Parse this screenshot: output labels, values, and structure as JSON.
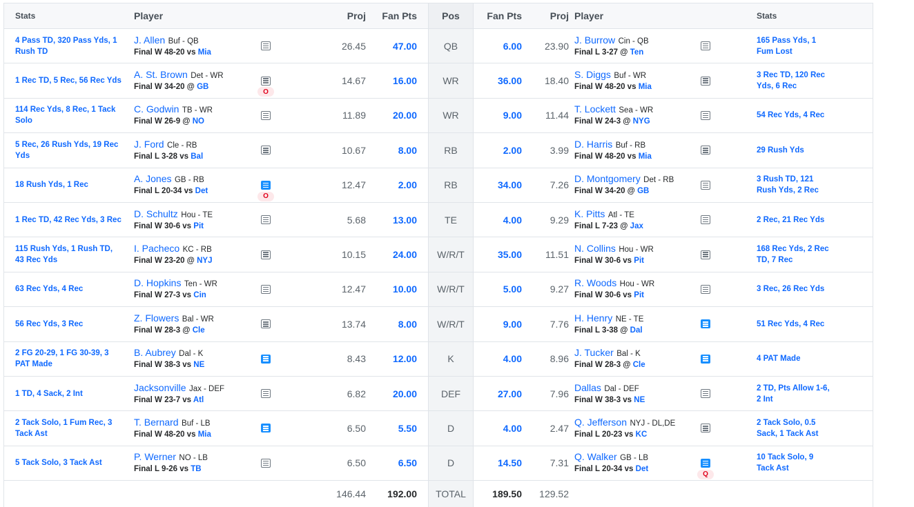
{
  "header": {
    "stats": "Stats",
    "player": "Player",
    "proj": "Proj",
    "fan_pts": "Fan Pts",
    "pos": "Pos"
  },
  "rows": [
    {
      "pos": "QB",
      "left": {
        "stats": "4 Pass TD, 320 Pass Yds, 1 Rush TD",
        "name": "J. Allen",
        "team_pos": "Buf - QB",
        "game": "Final W 48-20 vs",
        "opp": "Mia",
        "proj": "26.45",
        "fan": "47.00",
        "note": "notes-icon",
        "badge": ""
      },
      "right": {
        "stats": "165 Pass Yds, 1 Fum Lost",
        "name": "J. Burrow",
        "team_pos": "Cin - QB",
        "game": "Final L 3-27 @",
        "opp": "Ten",
        "proj": "23.90",
        "fan": "6.00",
        "note": "notes-icon",
        "badge": ""
      }
    },
    {
      "pos": "WR",
      "left": {
        "stats": "1 Rec TD, 5 Rec, 56 Rec Yds",
        "name": "A. St. Brown",
        "team_pos": "Det - WR",
        "game": "Final W 34-20 @",
        "opp": "GB",
        "proj": "14.67",
        "fan": "16.00",
        "note": "notes-icon",
        "badge": "O"
      },
      "right": {
        "stats": "3 Rec TD, 120 Rec Yds, 6 Rec",
        "name": "S. Diggs",
        "team_pos": "Buf - WR",
        "game": "Final W 48-20 vs",
        "opp": "Mia",
        "proj": "18.40",
        "fan": "36.00",
        "note": "notes-icon",
        "badge": ""
      }
    },
    {
      "pos": "WR",
      "left": {
        "stats": "114 Rec Yds, 8 Rec, 1 Tack Solo",
        "name": "C. Godwin",
        "team_pos": "TB - WR",
        "game": "Final W 26-9 @",
        "opp": "NO",
        "proj": "11.89",
        "fan": "20.00",
        "note": "notes-icon",
        "badge": ""
      },
      "right": {
        "stats": "54 Rec Yds, 4 Rec",
        "name": "T. Lockett",
        "team_pos": "Sea - WR",
        "game": "Final W 24-3 @",
        "opp": "NYG",
        "proj": "11.44",
        "fan": "9.00",
        "note": "notes-icon",
        "badge": ""
      }
    },
    {
      "pos": "RB",
      "left": {
        "stats": "5 Rec, 26 Rush Yds, 19 Rec Yds",
        "name": "J. Ford",
        "team_pos": "Cle - RB",
        "game": "Final L 3-28 vs",
        "opp": "Bal",
        "proj": "10.67",
        "fan": "8.00",
        "note": "notes-icon",
        "badge": ""
      },
      "right": {
        "stats": "29 Rush Yds",
        "name": "D. Harris",
        "team_pos": "Buf - RB",
        "game": "Final W 48-20 vs",
        "opp": "Mia",
        "proj": "3.99",
        "fan": "2.00",
        "note": "notes-icon",
        "badge": ""
      }
    },
    {
      "pos": "RB",
      "left": {
        "stats": "18 Rush Yds, 1 Rec",
        "name": "A. Jones",
        "team_pos": "GB - RB",
        "game": "Final L 20-34 vs",
        "opp": "Det",
        "proj": "12.47",
        "fan": "2.00",
        "note": "notes-active-icon",
        "badge": "O"
      },
      "right": {
        "stats": "3 Rush TD, 121 Rush Yds, 2 Rec",
        "name": "D. Montgomery",
        "team_pos": "Det - RB",
        "game": "Final W 34-20 @",
        "opp": "GB",
        "proj": "7.26",
        "fan": "34.00",
        "note": "notes-icon",
        "badge": ""
      }
    },
    {
      "pos": "TE",
      "left": {
        "stats": "1 Rec TD, 42 Rec Yds, 3 Rec",
        "name": "D. Schultz",
        "team_pos": "Hou - TE",
        "game": "Final W 30-6 vs",
        "opp": "Pit",
        "proj": "5.68",
        "fan": "13.00",
        "note": "notes-icon",
        "badge": ""
      },
      "right": {
        "stats": "2 Rec, 21 Rec Yds",
        "name": "K. Pitts",
        "team_pos": "Atl - TE",
        "game": "Final L 7-23 @",
        "opp": "Jax",
        "proj": "9.29",
        "fan": "4.00",
        "note": "notes-icon",
        "badge": ""
      }
    },
    {
      "pos": "W/R/T",
      "left": {
        "stats": "115 Rush Yds, 1 Rush TD, 43 Rec Yds",
        "name": "I. Pacheco",
        "team_pos": "KC - RB",
        "game": "Final W 23-20 @",
        "opp": "NYJ",
        "proj": "10.15",
        "fan": "24.00",
        "note": "notes-icon",
        "badge": ""
      },
      "right": {
        "stats": "168 Rec Yds, 2 Rec TD, 7 Rec",
        "name": "N. Collins",
        "team_pos": "Hou - WR",
        "game": "Final W 30-6 vs",
        "opp": "Pit",
        "proj": "11.51",
        "fan": "35.00",
        "note": "notes-icon",
        "badge": ""
      }
    },
    {
      "pos": "W/R/T",
      "left": {
        "stats": "63 Rec Yds, 4 Rec",
        "name": "D. Hopkins",
        "team_pos": "Ten - WR",
        "game": "Final W 27-3 vs",
        "opp": "Cin",
        "proj": "12.47",
        "fan": "10.00",
        "note": "notes-icon",
        "badge": ""
      },
      "right": {
        "stats": "3 Rec, 26 Rec Yds",
        "name": "R. Woods",
        "team_pos": "Hou - WR",
        "game": "Final W 30-6 vs",
        "opp": "Pit",
        "proj": "9.27",
        "fan": "5.00",
        "note": "notes-icon",
        "badge": ""
      }
    },
    {
      "pos": "W/R/T",
      "left": {
        "stats": "56 Rec Yds, 3 Rec",
        "name": "Z. Flowers",
        "team_pos": "Bal - WR",
        "game": "Final W 28-3 @",
        "opp": "Cle",
        "proj": "13.74",
        "fan": "8.00",
        "note": "notes-icon",
        "badge": ""
      },
      "right": {
        "stats": "51 Rec Yds, 4 Rec",
        "name": "H. Henry",
        "team_pos": "NE - TE",
        "game": "Final L 3-38 @",
        "opp": "Dal",
        "proj": "7.76",
        "fan": "9.00",
        "note": "notes-active-icon",
        "badge": ""
      }
    },
    {
      "pos": "K",
      "left": {
        "stats": "2 FG 20-29, 1 FG 30-39, 3 PAT Made",
        "name": "B. Aubrey",
        "team_pos": "Dal - K",
        "game": "Final W 38-3 vs",
        "opp": "NE",
        "proj": "8.43",
        "fan": "12.00",
        "note": "notes-active-icon",
        "badge": ""
      },
      "right": {
        "stats": "4 PAT Made",
        "name": "J. Tucker",
        "team_pos": "Bal - K",
        "game": "Final W 28-3 @",
        "opp": "Cle",
        "proj": "8.96",
        "fan": "4.00",
        "note": "notes-active-icon",
        "badge": ""
      }
    },
    {
      "pos": "DEF",
      "left": {
        "stats": "1 TD, 4 Sack, 2 Int",
        "name": "Jacksonville",
        "team_pos": "Jax - DEF",
        "game": "Final W 23-7 vs",
        "opp": "Atl",
        "proj": "6.82",
        "fan": "20.00",
        "note": "notes-icon",
        "badge": ""
      },
      "right": {
        "stats": "2 TD, Pts Allow 1-6, 2 Int",
        "name": "Dallas",
        "team_pos": "Dal - DEF",
        "game": "Final W 38-3 vs",
        "opp": "NE",
        "proj": "7.96",
        "fan": "27.00",
        "note": "notes-icon",
        "badge": ""
      }
    },
    {
      "pos": "D",
      "left": {
        "stats": "2 Tack Solo, 1 Fum Rec, 3 Tack Ast",
        "name": "T. Bernard",
        "team_pos": "Buf - LB",
        "game": "Final W 48-20 vs",
        "opp": "Mia",
        "proj": "6.50",
        "fan": "5.50",
        "note": "notes-active-icon",
        "badge": ""
      },
      "right": {
        "stats": "2 Tack Solo, 0.5 Sack, 1 Tack Ast",
        "name": "Q. Jefferson",
        "team_pos": "NYJ - DL,DE",
        "game": "Final L 20-23 vs",
        "opp": "KC",
        "proj": "2.47",
        "fan": "4.00",
        "note": "notes-icon",
        "badge": ""
      }
    },
    {
      "pos": "D",
      "left": {
        "stats": "5 Tack Solo, 3 Tack Ast",
        "name": "P. Werner",
        "team_pos": "NO - LB",
        "game": "Final L 9-26 vs",
        "opp": "TB",
        "proj": "6.50",
        "fan": "6.50",
        "note": "notes-icon",
        "badge": ""
      },
      "right": {
        "stats": "10 Tack Solo, 9 Tack Ast",
        "name": "Q. Walker",
        "team_pos": "GB - LB",
        "game": "Final L 20-34 vs",
        "opp": "Det",
        "proj": "7.31",
        "fan": "14.50",
        "note": "notes-active-icon",
        "badge": "Q"
      }
    }
  ],
  "totals": {
    "label": "TOTAL",
    "left_proj": "146.44",
    "left_fan": "192.00",
    "right_fan": "189.50",
    "right_proj": "129.52"
  },
  "colors": {
    "link_blue": "#0f69ff",
    "note_active": "#188fff",
    "badge_red": "#e0001b"
  }
}
